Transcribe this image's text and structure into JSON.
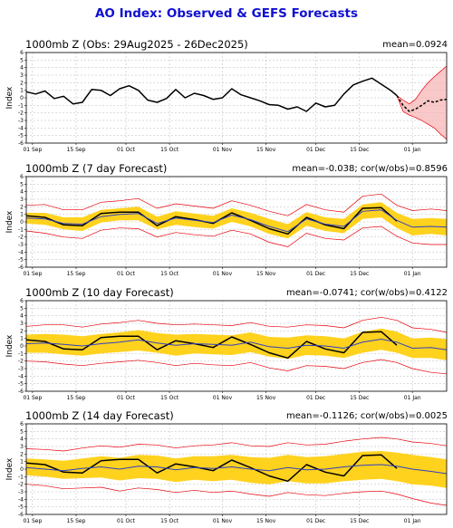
{
  "figure_title": "AO Index: Observed & GEFS Forecasts",
  "colors": {
    "title": "#1010d0",
    "observed": "#000000",
    "spread": "#ffd21e",
    "ensemble": "#e8000b",
    "mean": "#3040c0"
  },
  "chart_data": [
    {
      "type": "line",
      "title": "1000mb Z (Obs: 29Aug2025 - 26Dec2025)",
      "stat": "mean=0.0924",
      "ylabel": "Index",
      "ylim": [
        -6,
        6
      ],
      "yticks": [
        "6",
        "5",
        "4",
        "3",
        "2",
        "1",
        "0",
        "-1",
        "-2",
        "-3",
        "-4",
        "-5",
        "-6"
      ],
      "xticks": [
        "01 Sep",
        "15 Sep",
        "01 Oct",
        "15 Oct",
        "01 Nov",
        "15 Nov",
        "01 Dec",
        "15 Dec",
        "01 Jan"
      ],
      "grid": true,
      "series": [
        {
          "role": "observed",
          "x": [
            0,
            3,
            6,
            9,
            12,
            15,
            18,
            21,
            24,
            27,
            30,
            33,
            36,
            39,
            42,
            45,
            48,
            51,
            54,
            57,
            60,
            63,
            66,
            69,
            72,
            75,
            78,
            81,
            84,
            87,
            90,
            93,
            96,
            99,
            102,
            105,
            108,
            111,
            114,
            117,
            119
          ],
          "values": [
            0.8,
            0.5,
            0.9,
            -0.1,
            0.2,
            -0.8,
            -0.6,
            1.1,
            1.0,
            0.3,
            1.2,
            1.6,
            1.0,
            -0.3,
            -0.6,
            -0.1,
            1.1,
            0.0,
            0.6,
            0.3,
            -0.2,
            0.0,
            1.2,
            0.4,
            0.0,
            -0.4,
            -0.9,
            -1.0,
            -1.5,
            -1.2,
            -1.8,
            -0.7,
            -1.2,
            -1.0,
            0.5,
            1.7,
            2.2,
            2.6,
            1.8,
            1.0,
            0.3
          ]
        },
        {
          "role": "forecast-mean",
          "x": [
            119,
            121,
            123,
            125,
            127,
            129,
            131,
            133,
            135
          ],
          "values": [
            0.3,
            -1.0,
            -1.8,
            -1.5,
            -1.0,
            -0.4,
            -0.6,
            -0.3,
            -0.2
          ]
        }
      ],
      "ensemble_spread": {
        "x": [
          119,
          121,
          123,
          125,
          127,
          129,
          131,
          133,
          135
        ],
        "low": [
          0.3,
          -1.8,
          -2.3,
          -2.6,
          -3.0,
          -3.5,
          -4.0,
          -4.8,
          -5.5
        ],
        "high": [
          0.3,
          -0.3,
          -0.8,
          -0.2,
          1.0,
          2.0,
          2.8,
          3.5,
          4.2
        ]
      }
    },
    {
      "type": "line",
      "title": "1000mb Z (7 day Forecast)",
      "stat": "mean=-0.038; cor(w/obs)=0.8596",
      "ylabel": "Index",
      "ylim": [
        -6,
        6
      ],
      "yticks": [
        "6",
        "5",
        "4",
        "3",
        "2",
        "1",
        "0",
        "-1",
        "-2",
        "-3",
        "-4",
        "-5",
        "-6"
      ],
      "xticks": [
        "01 Sep",
        "15 Sep",
        "01 Oct",
        "15 Oct",
        "01 Nov",
        "15 Nov",
        "01 Dec",
        "15 Dec",
        "01 Jan"
      ],
      "grid": true,
      "series": [
        {
          "role": "observed",
          "x": [
            0,
            6,
            12,
            18,
            24,
            30,
            36,
            42,
            48,
            54,
            60,
            66,
            72,
            78,
            84,
            90,
            96,
            102,
            108,
            114,
            119
          ],
          "values": [
            0.8,
            0.6,
            -0.4,
            -0.5,
            1.1,
            1.3,
            1.3,
            -0.5,
            0.7,
            0.3,
            -0.2,
            1.2,
            0.2,
            -0.9,
            -1.6,
            0.6,
            -0.4,
            -0.9,
            1.8,
            1.9,
            0.1
          ]
        },
        {
          "role": "forecast-mean",
          "x": [
            0,
            6,
            12,
            18,
            24,
            30,
            36,
            42,
            48,
            54,
            60,
            66,
            72,
            78,
            84,
            90,
            96,
            102,
            108,
            114,
            119,
            124,
            130,
            135
          ],
          "values": [
            0.5,
            0.4,
            -0.2,
            -0.3,
            0.7,
            1.0,
            1.1,
            -0.2,
            0.5,
            0.2,
            -0.1,
            0.9,
            0.3,
            -0.6,
            -1.3,
            0.4,
            -0.3,
            -0.6,
            1.4,
            1.6,
            0.2,
            -0.7,
            -0.6,
            -0.7
          ]
        }
      ],
      "ensemble_spread": {
        "x": [
          0,
          6,
          12,
          18,
          24,
          30,
          36,
          42,
          48,
          54,
          60,
          66,
          72,
          78,
          84,
          90,
          96,
          102,
          108,
          114,
          119,
          124,
          130,
          135
        ],
        "low_inner": [
          -0.2,
          -0.4,
          -1.0,
          -1.2,
          -0.1,
          0.2,
          0.2,
          -1.0,
          -0.4,
          -0.7,
          -0.9,
          0.0,
          -0.6,
          -1.6,
          -2.2,
          -0.5,
          -1.2,
          -1.5,
          0.4,
          0.6,
          -0.8,
          -1.8,
          -1.6,
          -1.8
        ],
        "high_inner": [
          1.2,
          1.2,
          0.6,
          0.6,
          1.6,
          1.8,
          2.0,
          0.7,
          1.4,
          1.1,
          0.8,
          1.8,
          1.2,
          0.4,
          -0.3,
          1.3,
          0.6,
          0.4,
          2.3,
          2.6,
          1.2,
          0.4,
          0.5,
          0.4
        ],
        "low": [
          -1.2,
          -1.5,
          -2.0,
          -2.2,
          -1.1,
          -0.8,
          -0.9,
          -2.0,
          -1.4,
          -1.7,
          -1.9,
          -1.1,
          -1.6,
          -2.7,
          -3.3,
          -1.5,
          -2.2,
          -2.4,
          -0.8,
          -0.6,
          -1.9,
          -2.8,
          -3.0,
          -3.0
        ],
        "high": [
          2.2,
          2.3,
          1.6,
          1.6,
          2.6,
          2.8,
          3.1,
          1.8,
          2.4,
          2.1,
          1.8,
          2.8,
          2.2,
          1.4,
          0.8,
          2.3,
          1.6,
          1.3,
          3.4,
          3.7,
          2.2,
          1.5,
          1.7,
          1.5
        ]
      }
    },
    {
      "type": "line",
      "title": "1000mb Z (10 day Forecast)",
      "stat": "mean=-0.0741; cor(w/obs)=0.4122",
      "ylabel": "Index",
      "ylim": [
        -6,
        6
      ],
      "yticks": [
        "6",
        "5",
        "4",
        "3",
        "2",
        "1",
        "0",
        "-1",
        "-2",
        "-3",
        "-4",
        "-5",
        "-6"
      ],
      "xticks": [
        "01 Sep",
        "15 Sep",
        "01 Oct",
        "15 Oct",
        "01 Nov",
        "15 Nov",
        "01 Dec",
        "15 Dec",
        "01 Jan"
      ],
      "grid": true,
      "series": [
        {
          "role": "observed",
          "x": [
            0,
            6,
            12,
            18,
            24,
            30,
            36,
            42,
            48,
            54,
            60,
            66,
            72,
            78,
            84,
            90,
            96,
            102,
            108,
            114,
            119
          ],
          "values": [
            0.8,
            0.6,
            -0.4,
            -0.5,
            1.1,
            1.3,
            1.3,
            -0.5,
            0.7,
            0.3,
            -0.2,
            1.2,
            0.2,
            -0.9,
            -1.6,
            0.6,
            -0.4,
            -0.9,
            1.8,
            1.9,
            0.1
          ]
        },
        {
          "role": "forecast-mean",
          "x": [
            0,
            6,
            12,
            18,
            24,
            30,
            36,
            42,
            48,
            54,
            60,
            66,
            72,
            78,
            84,
            90,
            96,
            102,
            108,
            114,
            119,
            124,
            130,
            135
          ],
          "values": [
            0.3,
            0.4,
            0.2,
            0.0,
            0.3,
            0.5,
            0.8,
            0.4,
            0.1,
            0.3,
            0.2,
            0.1,
            0.5,
            -0.1,
            -0.3,
            0.1,
            0.0,
            -0.3,
            0.5,
            0.9,
            0.5,
            -0.3,
            -0.2,
            -0.5
          ]
        }
      ],
      "ensemble_spread": {
        "x": [
          0,
          6,
          12,
          18,
          24,
          30,
          36,
          42,
          48,
          54,
          60,
          66,
          72,
          78,
          84,
          90,
          96,
          102,
          108,
          114,
          119,
          124,
          130,
          135
        ],
        "low_inner": [
          -0.9,
          -0.9,
          -1.1,
          -1.3,
          -1.0,
          -0.8,
          -0.6,
          -0.9,
          -1.3,
          -1.0,
          -1.1,
          -1.2,
          -0.8,
          -1.4,
          -1.7,
          -1.2,
          -1.3,
          -1.6,
          -0.9,
          -0.5,
          -0.9,
          -1.6,
          -1.6,
          -1.9
        ],
        "high_inner": [
          1.5,
          1.6,
          1.5,
          1.3,
          1.6,
          1.8,
          2.1,
          1.7,
          1.5,
          1.6,
          1.5,
          1.4,
          1.8,
          1.2,
          1.1,
          1.4,
          1.3,
          1.0,
          1.9,
          2.3,
          1.9,
          1.0,
          1.1,
          0.9
        ],
        "low": [
          -2.0,
          -2.1,
          -2.4,
          -2.6,
          -2.3,
          -2.1,
          -1.9,
          -2.2,
          -2.6,
          -2.3,
          -2.5,
          -2.6,
          -2.2,
          -2.9,
          -3.3,
          -2.6,
          -2.7,
          -3.0,
          -2.2,
          -1.8,
          -2.2,
          -3.0,
          -3.5,
          -3.7
        ],
        "high": [
          2.6,
          2.8,
          2.8,
          2.5,
          2.9,
          3.1,
          3.4,
          3.0,
          2.8,
          2.9,
          2.8,
          2.7,
          3.1,
          2.6,
          2.5,
          2.8,
          2.7,
          2.4,
          3.4,
          3.8,
          3.4,
          2.4,
          2.2,
          1.8
        ]
      }
    },
    {
      "type": "line",
      "title": "1000mb Z (14 day Forecast)",
      "stat": "mean=-0.1126; cor(w/obs)=0.0025",
      "ylabel": "Index",
      "ylim": [
        -6,
        6
      ],
      "yticks": [
        "6",
        "5",
        "4",
        "3",
        "2",
        "1",
        "0",
        "-1",
        "-2",
        "-3",
        "-4",
        "-5",
        "-6"
      ],
      "xticks": [
        "01 Sep",
        "15 Sep",
        "01 Oct",
        "15 Oct",
        "01 Nov",
        "15 Nov",
        "01 Dec",
        "15 Dec",
        "01 Jan"
      ],
      "grid": true,
      "series": [
        {
          "role": "observed",
          "x": [
            0,
            6,
            12,
            18,
            24,
            30,
            36,
            42,
            48,
            54,
            60,
            66,
            72,
            78,
            84,
            90,
            96,
            102,
            108,
            114,
            119
          ],
          "values": [
            0.8,
            0.6,
            -0.4,
            -0.5,
            1.1,
            1.3,
            1.3,
            -0.5,
            0.7,
            0.3,
            -0.2,
            1.2,
            0.2,
            -0.9,
            -1.6,
            0.6,
            -0.4,
            -0.9,
            1.8,
            1.9,
            0.1
          ]
        },
        {
          "role": "forecast-mean",
          "x": [
            0,
            6,
            12,
            18,
            24,
            30,
            36,
            42,
            48,
            54,
            60,
            66,
            72,
            78,
            84,
            90,
            96,
            102,
            108,
            114,
            119,
            124,
            130,
            135
          ],
          "values": [
            0.2,
            0.0,
            -0.2,
            0.1,
            0.3,
            0.0,
            0.4,
            0.3,
            -0.1,
            0.2,
            0.1,
            0.3,
            0.0,
            -0.2,
            0.2,
            -0.1,
            0.0,
            0.3,
            0.5,
            0.6,
            0.4,
            0.0,
            -0.3,
            -0.6
          ]
        }
      ],
      "ensemble_spread": {
        "x": [
          0,
          6,
          12,
          18,
          24,
          30,
          36,
          42,
          48,
          54,
          60,
          66,
          72,
          78,
          84,
          90,
          96,
          102,
          108,
          114,
          119,
          124,
          130,
          135
        ],
        "low_inner": [
          -0.8,
          -1.0,
          -1.3,
          -1.2,
          -1.1,
          -1.5,
          -1.2,
          -1.3,
          -1.7,
          -1.4,
          -1.6,
          -1.4,
          -1.8,
          -2.0,
          -1.6,
          -1.9,
          -1.9,
          -1.6,
          -1.4,
          -1.3,
          -1.6,
          -2.0,
          -2.2,
          -2.5
        ],
        "high_inner": [
          1.4,
          1.3,
          1.1,
          1.4,
          1.7,
          1.5,
          1.9,
          1.8,
          1.4,
          1.7,
          1.7,
          1.9,
          1.6,
          1.5,
          1.9,
          1.6,
          1.7,
          2.0,
          2.3,
          2.4,
          2.2,
          1.9,
          1.6,
          1.3
        ],
        "low": [
          -2.0,
          -2.2,
          -2.6,
          -2.5,
          -2.4,
          -2.9,
          -2.5,
          -2.7,
          -3.1,
          -2.8,
          -3.1,
          -2.9,
          -3.3,
          -3.6,
          -3.1,
          -3.4,
          -3.5,
          -3.2,
          -3.0,
          -2.9,
          -3.3,
          -3.9,
          -4.5,
          -4.8
        ],
        "high": [
          2.7,
          2.6,
          2.4,
          2.8,
          3.1,
          2.9,
          3.3,
          3.2,
          2.8,
          3.1,
          3.2,
          3.5,
          3.1,
          3.0,
          3.5,
          3.2,
          3.3,
          3.7,
          4.0,
          4.2,
          4.0,
          3.6,
          3.4,
          3.1
        ]
      }
    }
  ]
}
